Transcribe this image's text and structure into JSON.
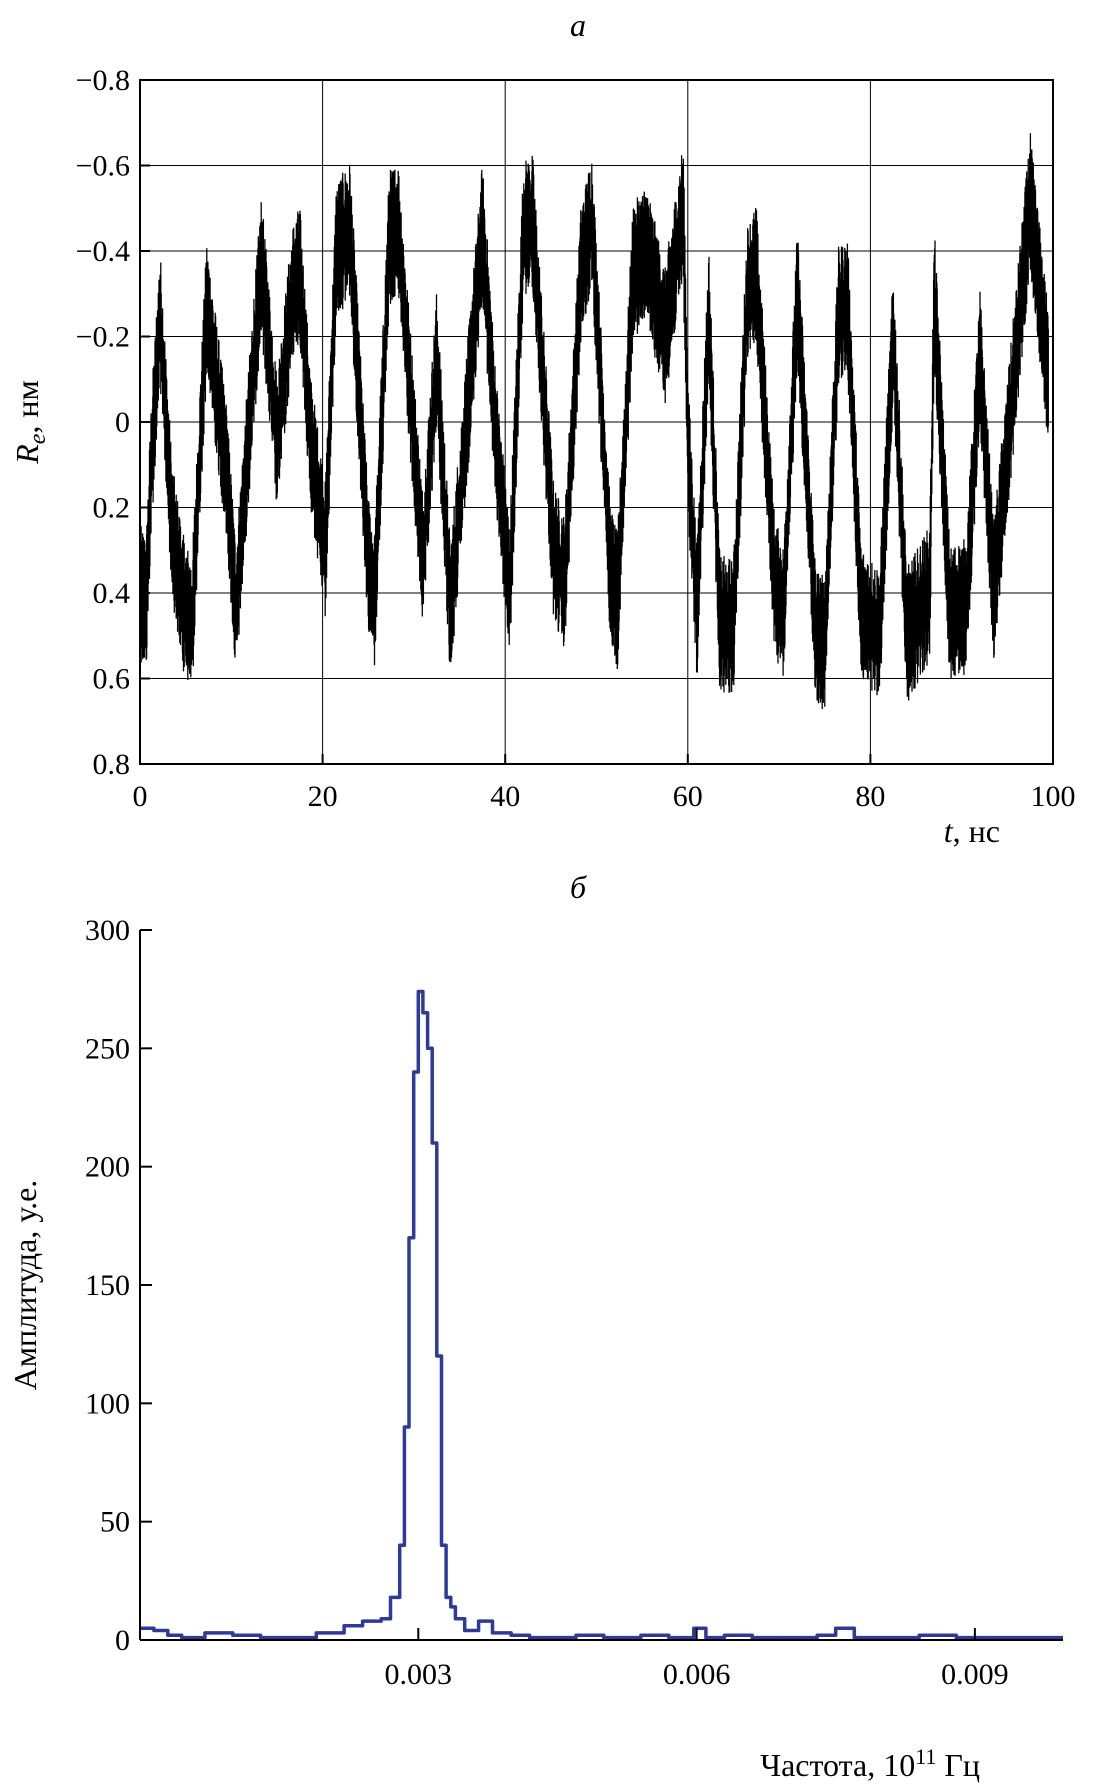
{
  "chart_data": [
    {
      "type": "line",
      "title": "a",
      "xlabel": "t, нс",
      "xlabel_var": "t",
      "xlabel_unit": ", нс",
      "ylabel": "R_e, нм",
      "ylabel_var": "R",
      "ylabel_sub": "e",
      "ylabel_unit": ", нм",
      "xlim": [
        0,
        100
      ],
      "ylim": [
        0.8,
        -0.8
      ],
      "y_inverted": true,
      "grid": true,
      "x_ticks": [
        0,
        20,
        40,
        60,
        80,
        100
      ],
      "y_ticks": [
        -0.8,
        -0.6,
        -0.4,
        -0.2,
        0,
        0.2,
        0.4,
        0.6,
        0.8
      ],
      "y_tick_labels": [
        "−0.8",
        "−0.6",
        "−0.4",
        "−0.2",
        "0",
        "0.2",
        "0.4",
        "0.6",
        "0.8"
      ],
      "line_color": "#000000",
      "series": [
        {
          "x": [
            0,
            0.7,
            1.2,
            2.2,
            3.5,
            4.7,
            5.7,
            7.3,
            9.5,
            10.5,
            12.5,
            13.3,
            15,
            16.7,
            17.5,
            18.7,
            20.3,
            21.5,
            23,
            25,
            25.7,
            27.3,
            28.3,
            30,
            31,
            32.5,
            34,
            35.3,
            37.5,
            39,
            40.5,
            42,
            43,
            45.3,
            46.5,
            48.3,
            49.5,
            51.5,
            52.3,
            54,
            55.5,
            57.5,
            59.5,
            60,
            61,
            62.3,
            63.5,
            65,
            66.5,
            67.5,
            69.5,
            70.5,
            72,
            74,
            75,
            76.5,
            77.5,
            79,
            81,
            82.5,
            84,
            86.5,
            87,
            88.7,
            90.5,
            92,
            93.5,
            95.5,
            97.5,
            99.5
          ],
          "y": [
            0.4,
            0.42,
            0.12,
            -0.25,
            0.25,
            0.42,
            0.48,
            -0.27,
            0.12,
            0.45,
            -0.15,
            -0.37,
            0.05,
            -0.3,
            -0.35,
            0.05,
            0.3,
            -0.4,
            -0.45,
            0.33,
            0.42,
            -0.43,
            -0.45,
            0.05,
            0.33,
            -0.15,
            0.45,
            0.12,
            -0.45,
            0.05,
            0.4,
            -0.45,
            -0.47,
            0.3,
            0.38,
            -0.35,
            -0.47,
            0.35,
            0.42,
            -0.35,
            -0.4,
            -0.2,
            -0.5,
            0.05,
            0.45,
            -0.25,
            0.47,
            0.48,
            -0.3,
            -0.35,
            0.38,
            0.45,
            -0.3,
            0.5,
            0.52,
            -0.25,
            -0.27,
            0.45,
            0.5,
            -0.2,
            0.5,
            0.4,
            -0.3,
            0.45,
            0.43,
            -0.15,
            0.4,
            -0.05,
            -0.52,
            -0.1
          ]
        }
      ]
    },
    {
      "type": "line",
      "title": "б",
      "xlabel": "Частота, 10 Гц",
      "xlabel_text": "Частота, 10",
      "xlabel_exp": "11",
      "xlabel_unit": " Гц",
      "ylabel": "Амплитуда, у.е.",
      "xlim": [
        0,
        0.00995
      ],
      "ylim": [
        0,
        300
      ],
      "grid": false,
      "x_ticks": [
        0.003,
        0.006,
        0.009
      ],
      "x_tick_labels": [
        "0.003",
        "0.006",
        "0.009"
      ],
      "y_ticks": [
        0,
        50,
        100,
        150,
        200,
        250,
        300
      ],
      "line_color": "#2e3a9a",
      "series": [
        {
          "x": [
            0,
            0.00015,
            0.0003,
            0.00045,
            0.0007,
            0.001,
            0.0013,
            0.0016,
            0.0019,
            0.0022,
            0.0024,
            0.0026,
            0.0027,
            0.0028,
            0.00285,
            0.0029,
            0.00295,
            0.003,
            0.00305,
            0.0031,
            0.00315,
            0.0032,
            0.00325,
            0.0033,
            0.00335,
            0.0034,
            0.0035,
            0.00365,
            0.0038,
            0.004,
            0.0042,
            0.00445,
            0.0047,
            0.005,
            0.0054,
            0.0057,
            0.00597,
            0.0061,
            0.0063,
            0.0066,
            0.007,
            0.0073,
            0.0075,
            0.0077,
            0.0079,
            0.0081,
            0.0084,
            0.0088,
            0.0091,
            0.0094,
            0.00995
          ],
          "y": [
            5,
            4,
            2,
            1,
            3,
            2,
            1,
            1,
            3,
            6,
            8,
            9,
            18,
            40,
            90,
            170,
            240,
            274,
            265,
            250,
            210,
            120,
            40,
            18,
            14,
            9,
            4,
            8,
            3,
            2,
            1,
            1,
            2,
            1,
            2,
            1,
            5,
            1,
            2,
            1,
            1,
            2,
            5,
            1,
            1,
            1,
            2,
            1,
            1,
            1,
            1
          ]
        }
      ]
    }
  ]
}
